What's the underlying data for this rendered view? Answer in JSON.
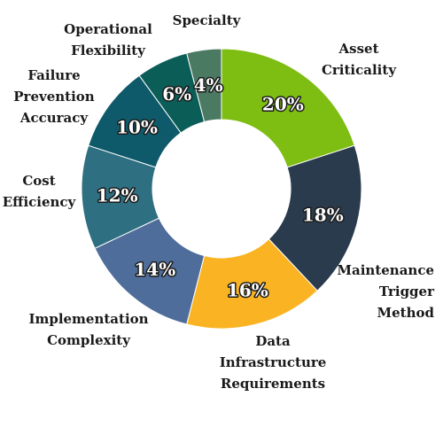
{
  "chart_data": {
    "type": "pie",
    "donut": true,
    "categories": [
      "Asset Criticality",
      "Maintenance Trigger Method",
      "Data Infrastructure Requirements",
      "Implementation Complexity",
      "Cost Efficiency",
      "Failure Prevention Accuracy",
      "Operational Flexibility",
      "Specialty"
    ],
    "values": [
      20,
      18,
      16,
      14,
      12,
      10,
      6,
      4
    ],
    "value_labels": [
      "20%",
      "18%",
      "16%",
      "14%",
      "12%",
      "10%",
      "6%",
      "4%"
    ],
    "colors": [
      "#7ebd12",
      "#2a3b4d",
      "#fab423",
      "#4f6d9a",
      "#2f6f82",
      "#0e5a6a",
      "#0b5d58",
      "#4b7a62"
    ],
    "legend": "none",
    "title": ""
  }
}
